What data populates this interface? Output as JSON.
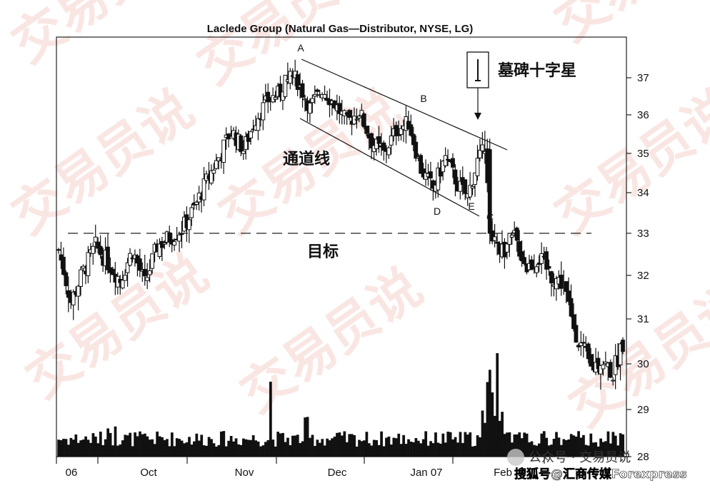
{
  "chart_data": {
    "type": "candlestick",
    "title": "Laclede Group (Natural Gas—Distributor, NYSE, LG)",
    "ylim": [
      28,
      38
    ],
    "y_ticks": [
      "28",
      "29",
      "30",
      "31",
      "32",
      "33",
      "34",
      "35",
      "36",
      "37"
    ],
    "x_labels": [
      "06",
      "Oct",
      "Nov",
      "Dec",
      "Jan 07",
      "Feb"
    ],
    "target_price": 33,
    "point_labels": [
      "A",
      "B",
      "C",
      "D",
      "E"
    ],
    "annotations": {
      "tombstone_doji": "墓碑十字星",
      "channel_line": "通道线",
      "target": "目标"
    },
    "price_path": [
      {
        "day": 0,
        "close": 32.6
      },
      {
        "day": 5,
        "close": 31.4
      },
      {
        "day": 10,
        "close": 32.1
      },
      {
        "day": 15,
        "close": 32.7
      },
      {
        "day": 20,
        "close": 32.3
      },
      {
        "day": 25,
        "close": 31.9
      },
      {
        "day": 30,
        "close": 32.6
      },
      {
        "day": 35,
        "close": 31.8
      },
      {
        "day": 40,
        "close": 32.7
      },
      {
        "day": 45,
        "close": 32.9
      },
      {
        "day": 50,
        "close": 33.1
      },
      {
        "day": 55,
        "close": 33.6
      },
      {
        "day": 60,
        "close": 34.3
      },
      {
        "day": 65,
        "close": 34.9
      },
      {
        "day": 70,
        "close": 35.6
      },
      {
        "day": 75,
        "close": 35.1
      },
      {
        "day": 80,
        "close": 35.9
      },
      {
        "day": 85,
        "close": 36.4
      },
      {
        "day": 90,
        "close": 36.6
      },
      {
        "day": 93,
        "close": 37.2
      },
      {
        "day": 97,
        "close": 36.9
      },
      {
        "day": 102,
        "close": 36.2
      },
      {
        "day": 107,
        "close": 36.7
      },
      {
        "day": 112,
        "close": 36.3
      },
      {
        "day": 117,
        "close": 35.8
      },
      {
        "day": 122,
        "close": 36.1
      },
      {
        "day": 127,
        "close": 35.3
      },
      {
        "day": 132,
        "close": 35.0
      },
      {
        "day": 137,
        "close": 35.6
      },
      {
        "day": 142,
        "close": 35.8
      },
      {
        "day": 147,
        "close": 34.6
      },
      {
        "day": 152,
        "close": 34.1
      },
      {
        "day": 157,
        "close": 34.9
      },
      {
        "day": 162,
        "close": 34.2
      },
      {
        "day": 166,
        "close": 33.9
      },
      {
        "day": 170,
        "close": 34.8
      },
      {
        "day": 173,
        "close": 35.1
      },
      {
        "day": 176,
        "close": 33.0
      },
      {
        "day": 180,
        "close": 32.6
      },
      {
        "day": 185,
        "close": 32.9
      },
      {
        "day": 190,
        "close": 32.2
      },
      {
        "day": 195,
        "close": 32.4
      },
      {
        "day": 200,
        "close": 32.0
      },
      {
        "day": 205,
        "close": 31.8
      },
      {
        "day": 208,
        "close": 31.0
      },
      {
        "day": 212,
        "close": 30.4
      },
      {
        "day": 216,
        "close": 29.9
      },
      {
        "day": 220,
        "close": 30.1
      },
      {
        "day": 225,
        "close": 29.8
      },
      {
        "day": 229,
        "close": 30.5
      }
    ]
  },
  "watermark": {
    "wechat": "公众号 · 交易员说",
    "source": "搜狐号@汇商传媒Forexpress",
    "background_text": "交易员说"
  }
}
